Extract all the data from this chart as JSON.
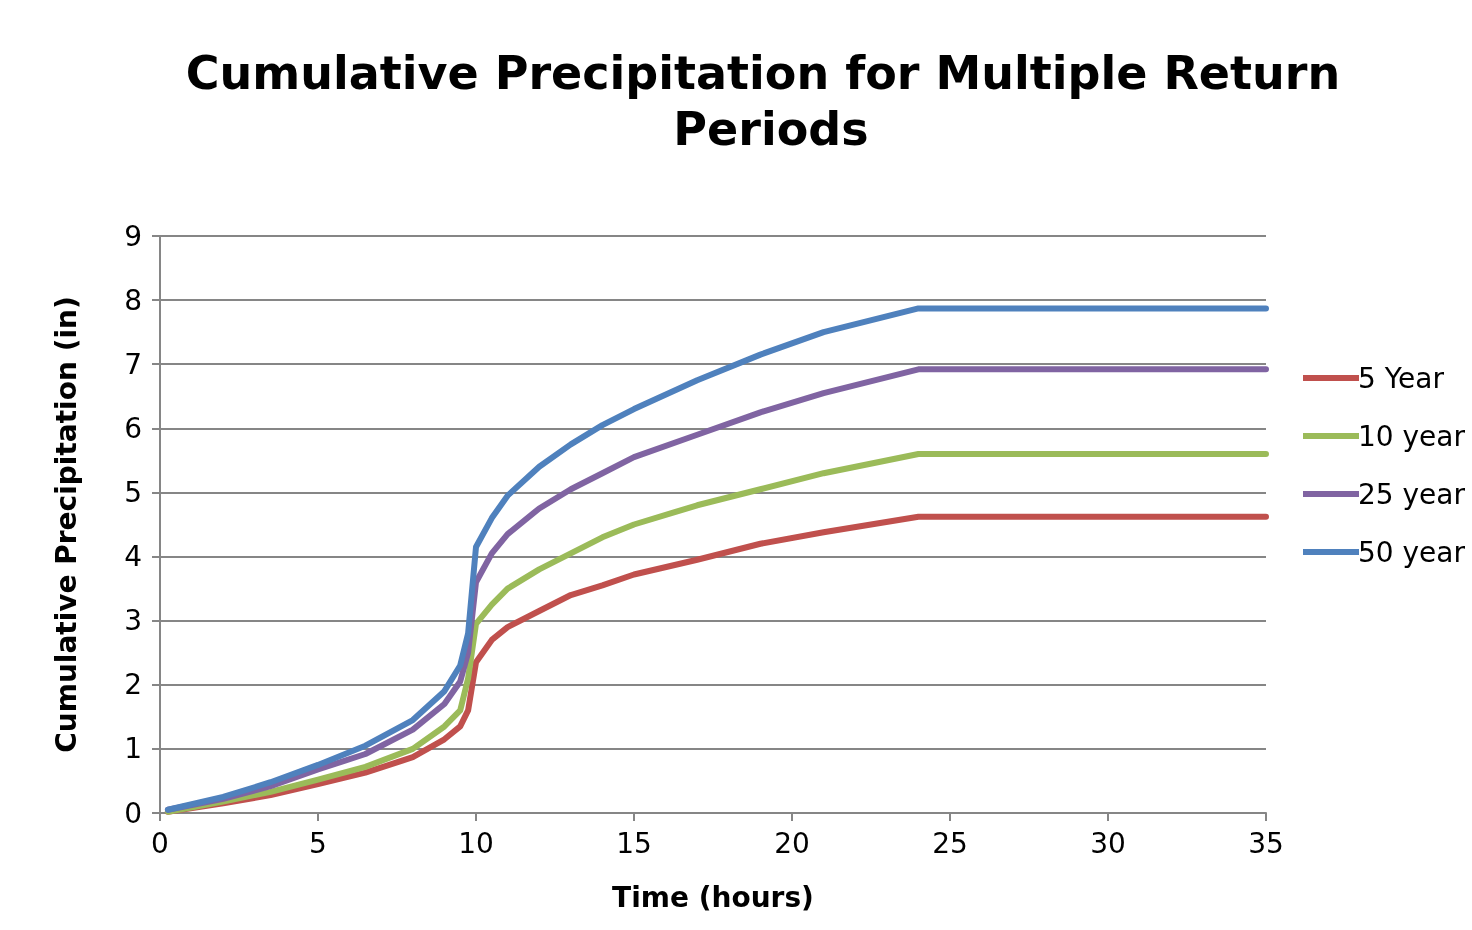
{
  "chart_data": {
    "type": "line",
    "title": "Cumulative Precipitation for Multiple Return Periods",
    "xlabel": "Time (hours)",
    "ylabel": "Cumulative Precipitation (in)",
    "x": [
      0.25,
      2,
      3.5,
      5,
      6.5,
      8,
      9,
      9.5,
      9.75,
      10,
      10.5,
      11,
      12,
      13,
      14,
      15,
      17,
      19,
      21,
      24,
      35
    ],
    "series": [
      {
        "name": "5 Year",
        "color": "#c0504d",
        "values": [
          0.02,
          0.15,
          0.28,
          0.45,
          0.63,
          0.87,
          1.15,
          1.35,
          1.6,
          2.35,
          2.7,
          2.9,
          3.15,
          3.4,
          3.55,
          3.72,
          3.95,
          4.2,
          4.38,
          4.62,
          4.62
        ]
      },
      {
        "name": "10 year",
        "color": "#9bbb59",
        "values": [
          0.02,
          0.18,
          0.33,
          0.52,
          0.72,
          1.0,
          1.35,
          1.6,
          2.1,
          2.95,
          3.25,
          3.5,
          3.8,
          4.05,
          4.3,
          4.5,
          4.8,
          5.05,
          5.3,
          5.6,
          5.6
        ]
      },
      {
        "name": "25 year",
        "color": "#8064a2",
        "values": [
          0.05,
          0.22,
          0.42,
          0.68,
          0.92,
          1.3,
          1.7,
          2.05,
          2.5,
          3.6,
          4.05,
          4.35,
          4.75,
          5.05,
          5.3,
          5.55,
          5.9,
          6.25,
          6.55,
          6.92,
          6.92
        ]
      },
      {
        "name": "50 year",
        "color": "#4f81bd",
        "values": [
          0.05,
          0.25,
          0.48,
          0.75,
          1.05,
          1.45,
          1.9,
          2.3,
          2.8,
          4.15,
          4.6,
          4.95,
          5.4,
          5.75,
          6.05,
          6.3,
          6.75,
          7.15,
          7.5,
          7.87,
          7.87
        ]
      }
    ],
    "xlim": [
      0,
      35
    ],
    "xticks": [
      0,
      5,
      10,
      15,
      20,
      25,
      30,
      35
    ],
    "ylim": [
      0,
      9
    ],
    "yticks": [
      0,
      1,
      2,
      3,
      4,
      5,
      6,
      7,
      8,
      9
    ],
    "grid": "y",
    "legend": "right",
    "marker": "none",
    "line_style": "solid"
  }
}
